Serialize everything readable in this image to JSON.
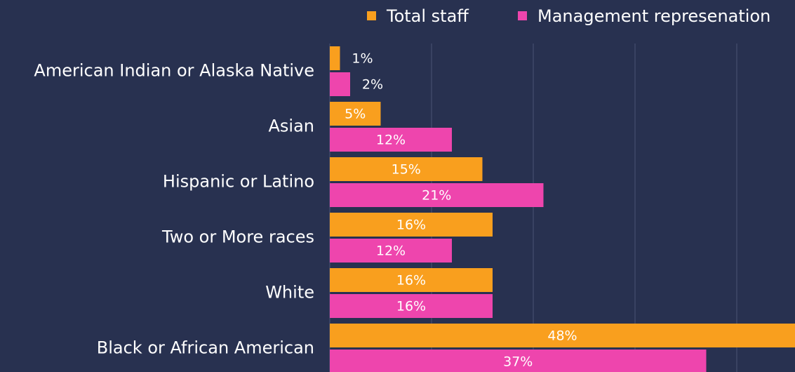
{
  "chart_data": {
    "type": "hbar",
    "categories": [
      "American Indian or Alaska Native",
      "Asian",
      "Hispanic or Latino",
      "Two or More races",
      "White",
      "Black or African American"
    ],
    "series": [
      {
        "name": "Total staff",
        "color": "#f99f1e",
        "values": [
          1,
          5,
          15,
          16,
          16,
          48
        ],
        "value_labels": [
          "1%",
          "5%",
          "15%",
          "16%",
          "16%",
          "48%"
        ]
      },
      {
        "name": "Management represenation",
        "color": "#ee45ad",
        "values": [
          2,
          12,
          21,
          12,
          16,
          37
        ],
        "value_labels": [
          "2%",
          "12%",
          "21%",
          "12%",
          "16%",
          "37%"
        ]
      }
    ],
    "xlim": [
      0,
      50
    ],
    "xticks": [
      10,
      20,
      30,
      40
    ],
    "grid": true,
    "legend": "top"
  }
}
